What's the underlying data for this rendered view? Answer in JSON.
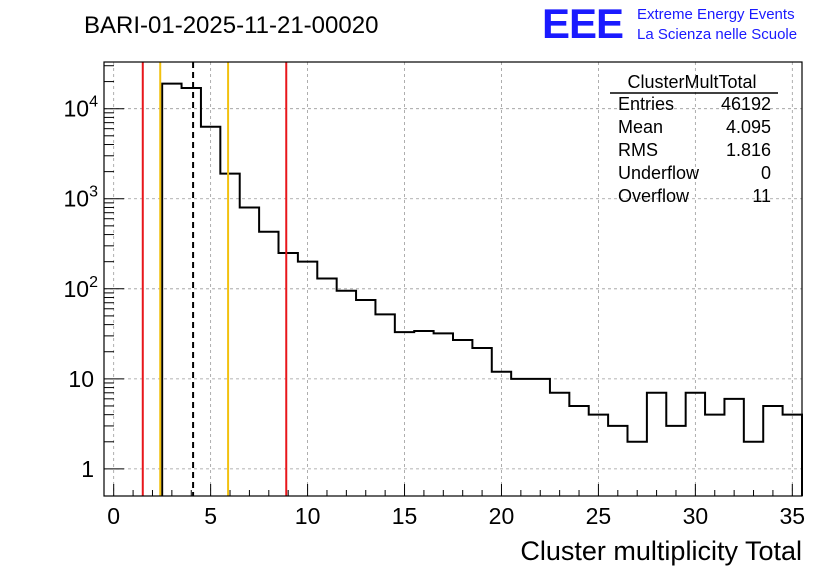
{
  "title": "BARI-01-2025-11-21-00020",
  "logo": {
    "mark": "EEE",
    "line1": "Extreme Energy Events",
    "line2": "La Scienza nelle Scuole",
    "color": "#1a1aff"
  },
  "stats": {
    "name": "ClusterMultTotal",
    "rows": [
      {
        "label": "Entries",
        "value": "46192"
      },
      {
        "label": "Mean",
        "value": "4.095"
      },
      {
        "label": "RMS",
        "value": "1.816"
      },
      {
        "label": "Underflow",
        "value": "0"
      },
      {
        "label": "Overflow",
        "value": "11"
      }
    ]
  },
  "chart_data": {
    "type": "bar",
    "style": "step-histogram",
    "title": "BARI-01-2025-11-21-00020",
    "xlabel": "Cluster multiplicity Total",
    "ylabel": "",
    "xlim": [
      -0.5,
      35.5
    ],
    "ylim": [
      0.5,
      33000
    ],
    "yscale": "log",
    "grid": true,
    "bin_width": 1,
    "x_ticks": [
      "0",
      "5",
      "10",
      "15",
      "20",
      "25",
      "30",
      "35"
    ],
    "x_tick_values": [
      0,
      5,
      10,
      15,
      20,
      25,
      30,
      35
    ],
    "y_ticks": [
      {
        "value": 1,
        "base": "1",
        "exp": ""
      },
      {
        "value": 10,
        "base": "10",
        "exp": ""
      },
      {
        "value": 100,
        "base": "10",
        "exp": "2"
      },
      {
        "value": 1000,
        "base": "10",
        "exp": "3"
      },
      {
        "value": 10000,
        "base": "10",
        "exp": "4"
      }
    ],
    "bins": [
      {
        "x": 3,
        "value": 19000
      },
      {
        "x": 4,
        "value": 17000
      },
      {
        "x": 5,
        "value": 6300
      },
      {
        "x": 6,
        "value": 1900
      },
      {
        "x": 7,
        "value": 800
      },
      {
        "x": 8,
        "value": 430
      },
      {
        "x": 9,
        "value": 250
      },
      {
        "x": 10,
        "value": 200
      },
      {
        "x": 11,
        "value": 130
      },
      {
        "x": 12,
        "value": 95
      },
      {
        "x": 13,
        "value": 75
      },
      {
        "x": 14,
        "value": 52
      },
      {
        "x": 15,
        "value": 33
      },
      {
        "x": 16,
        "value": 34
      },
      {
        "x": 17,
        "value": 32
      },
      {
        "x": 18,
        "value": 27
      },
      {
        "x": 19,
        "value": 22
      },
      {
        "x": 20,
        "value": 12
      },
      {
        "x": 21,
        "value": 10
      },
      {
        "x": 22,
        "value": 10
      },
      {
        "x": 23,
        "value": 7
      },
      {
        "x": 24,
        "value": 5
      },
      {
        "x": 25,
        "value": 4
      },
      {
        "x": 26,
        "value": 3
      },
      {
        "x": 27,
        "value": 2
      },
      {
        "x": 28,
        "value": 7
      },
      {
        "x": 29,
        "value": 3
      },
      {
        "x": 30,
        "value": 7
      },
      {
        "x": 31,
        "value": 4
      },
      {
        "x": 32,
        "value": 6
      },
      {
        "x": 33,
        "value": 2
      },
      {
        "x": 34,
        "value": 5
      },
      {
        "x": 35,
        "value": 4
      }
    ],
    "markers": [
      {
        "name": "red-left",
        "x": 1.5,
        "color": "#e8161b",
        "style": "solid"
      },
      {
        "name": "yellow-left",
        "x": 2.4,
        "color": "#f2c10f",
        "style": "solid"
      },
      {
        "name": "mean",
        "x": 4.095,
        "color": "#000000",
        "style": "dashed"
      },
      {
        "name": "yellow-right",
        "x": 5.9,
        "color": "#f2c10f",
        "style": "solid"
      },
      {
        "name": "red-right",
        "x": 8.9,
        "color": "#e8161b",
        "style": "solid"
      }
    ]
  }
}
